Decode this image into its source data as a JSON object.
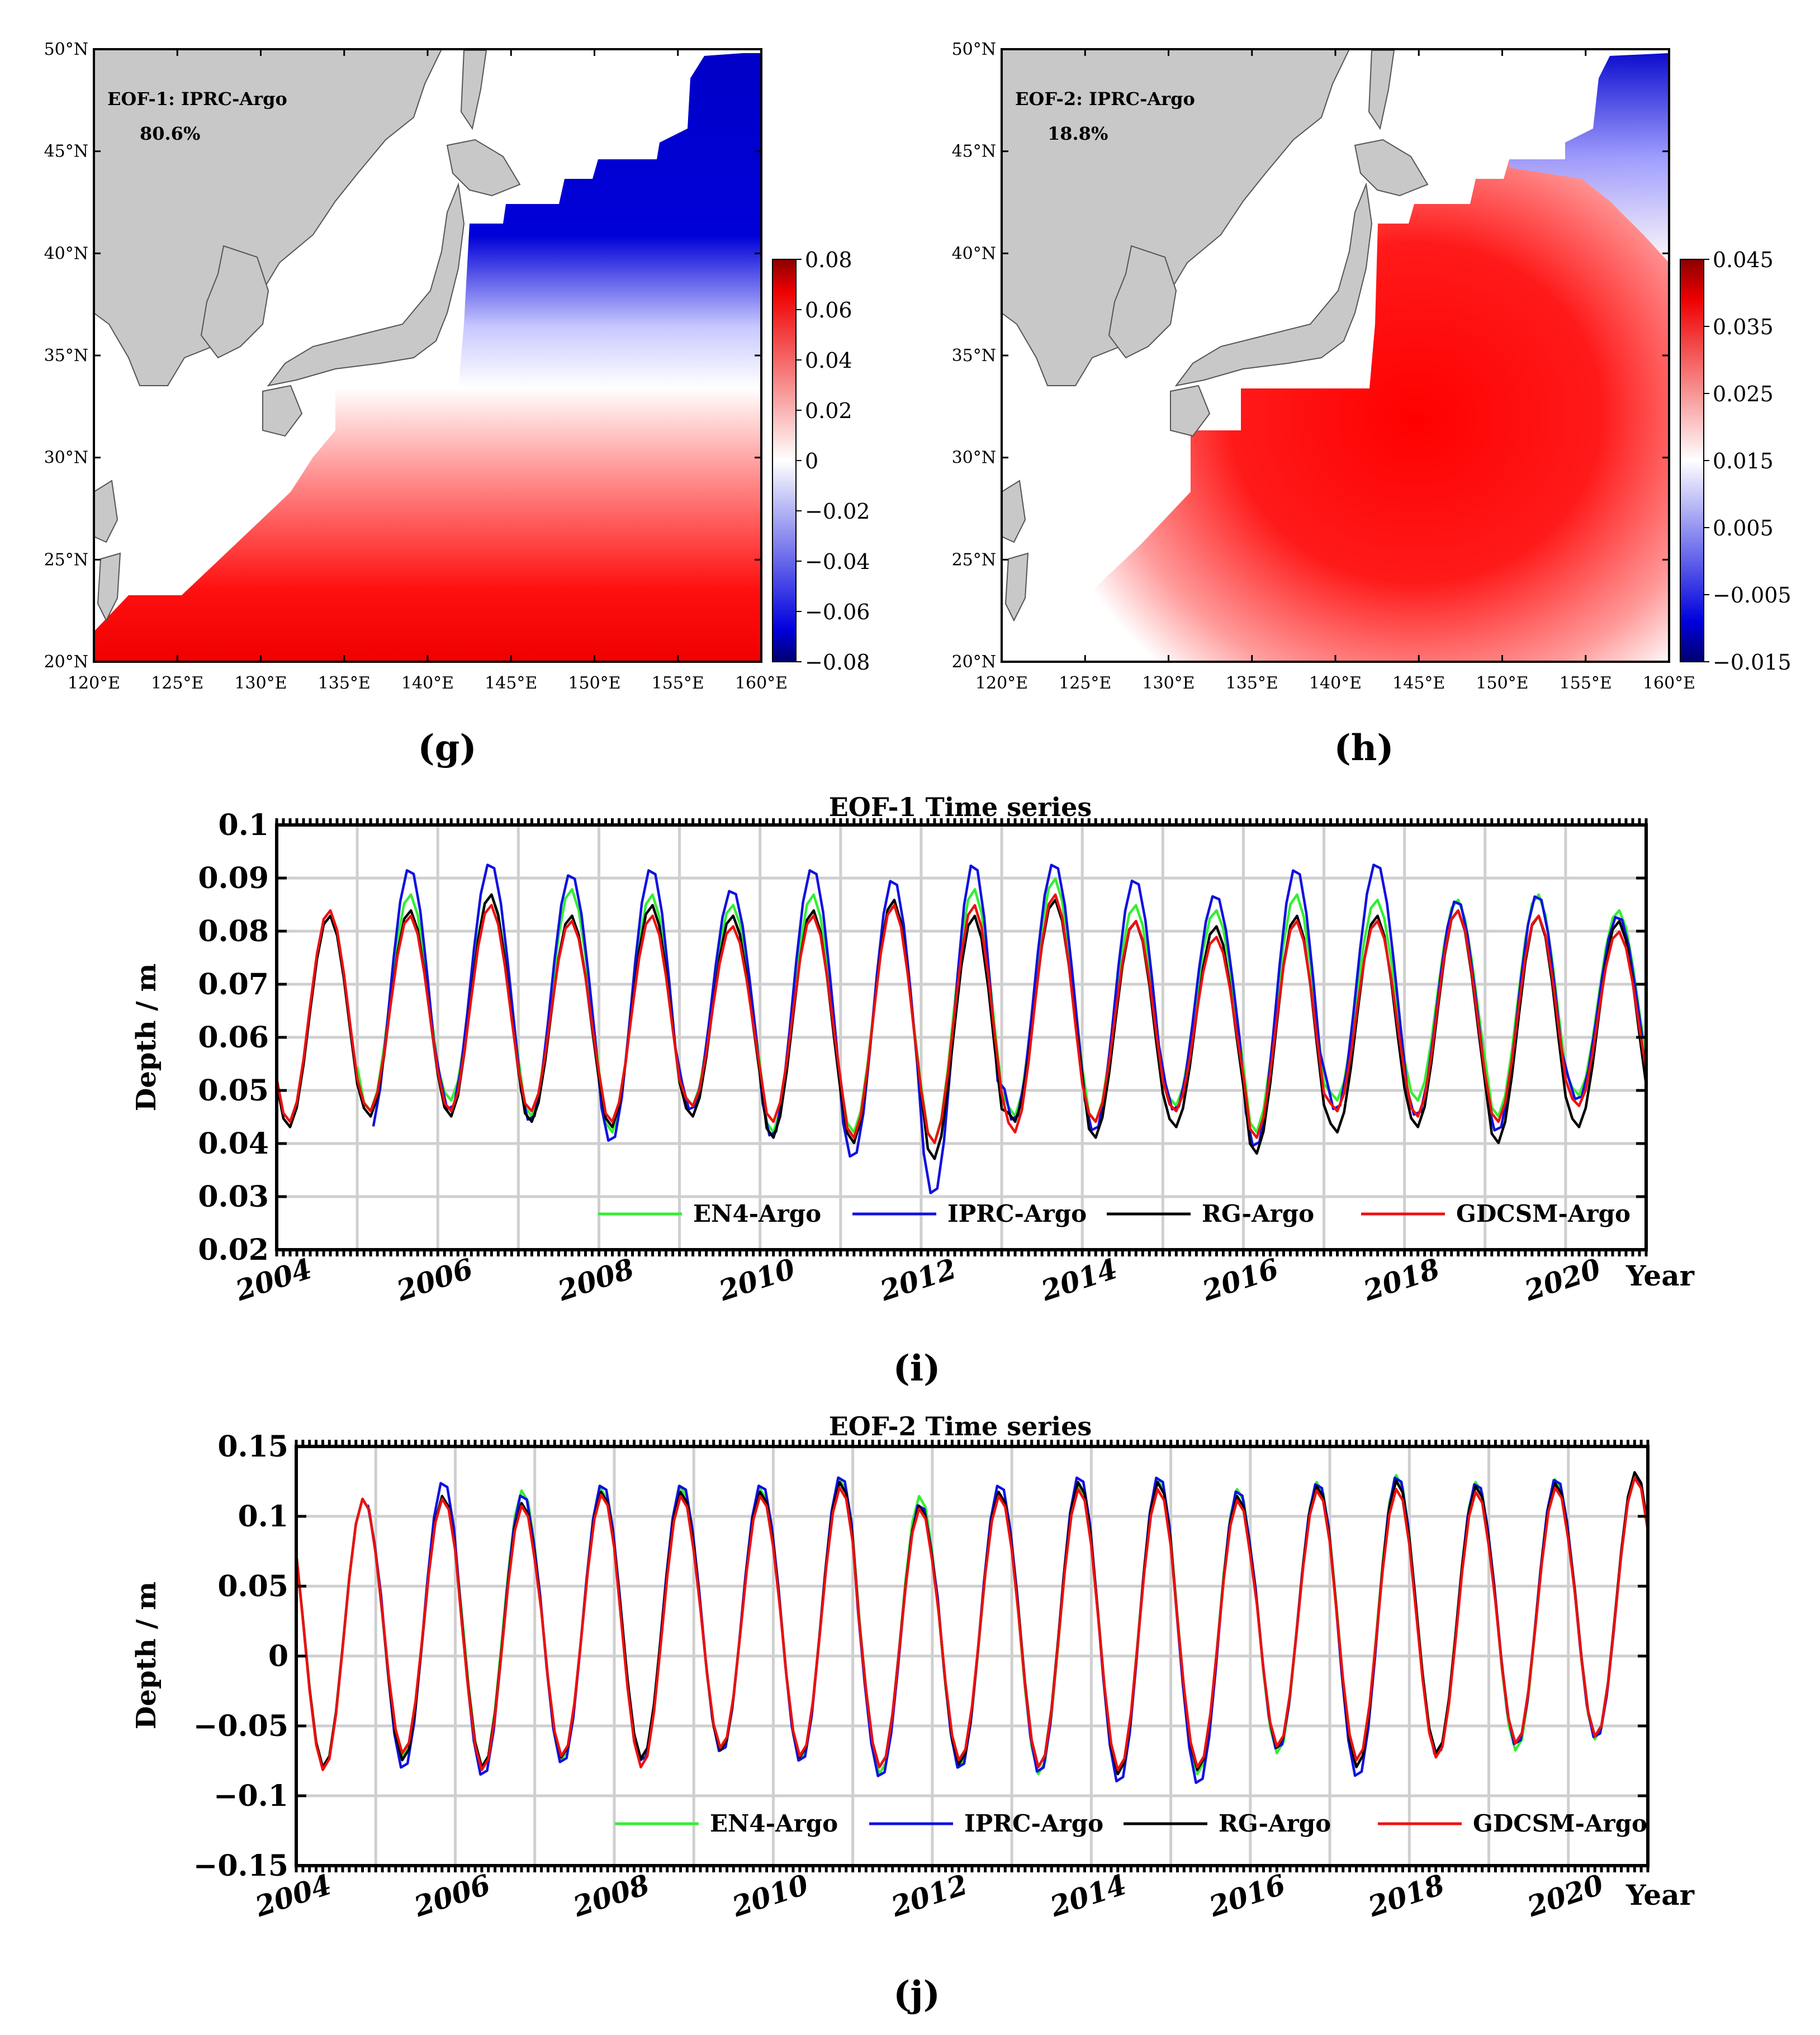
{
  "colors": {
    "red": "#f00000",
    "blue": "#0000cc",
    "white": "#ffffff",
    "land": "#c8c8c8",
    "en4": "#33ee33",
    "iprc": "#1010e0",
    "rg": "#000000",
    "gdcsm": "#ee1010",
    "grid": "#cfcfcf"
  },
  "chart_data": [
    {
      "id": "g",
      "type": "heatmap",
      "panel_label": "(g)",
      "annotation_title": "EOF-1: IPRC-Argo",
      "annotation_pct": "80.6%",
      "x_ticks": [
        "120°E",
        "125°E",
        "130°E",
        "135°E",
        "140°E",
        "145°E",
        "150°E",
        "155°E",
        "160°E"
      ],
      "y_ticks": [
        "50°N",
        "45°N",
        "40°N",
        "35°N",
        "30°N",
        "25°N",
        "20°N"
      ],
      "xlim": [
        120,
        160
      ],
      "ylim": [
        20,
        50
      ],
      "colorbar_ticks": [
        "0.08",
        "0.06",
        "0.04",
        "0.02",
        "0",
        "−0.02",
        "−0.04",
        "−0.06",
        "−0.08"
      ],
      "colorbar_range": [
        -0.08,
        0.08
      ],
      "pattern": "positive south of ~32°N, negative north of ~36°N"
    },
    {
      "id": "h",
      "type": "heatmap",
      "panel_label": "(h)",
      "annotation_title": "EOF-2: IPRC-Argo",
      "annotation_pct": "18.8%",
      "x_ticks": [
        "120°E",
        "125°E",
        "130°E",
        "135°E",
        "140°E",
        "145°E",
        "150°E",
        "155°E",
        "160°E"
      ],
      "y_ticks": [
        "50°N",
        "45°N",
        "40°N",
        "35°N",
        "30°N",
        "25°N",
        "20°N"
      ],
      "xlim": [
        120,
        160
      ],
      "ylim": [
        20,
        50
      ],
      "colorbar_ticks": [
        "0.045",
        "0.035",
        "0.025",
        "0.015",
        "0.005",
        "−0.005",
        "−0.015"
      ],
      "colorbar_range": [
        -0.015,
        0.045
      ],
      "pattern": "maximum near 30°N 140–155°E, weak toward 20°N and 45°N"
    },
    {
      "id": "i",
      "type": "line",
      "panel_label": "(i)",
      "title": "EOF-1 Time series",
      "ylabel": "Depth / m",
      "xlabel": "Year",
      "xlim": [
        2004,
        2021
      ],
      "ylim": [
        0.02,
        0.1
      ],
      "yticks": [
        "0.1",
        "0.09",
        "0.08",
        "0.07",
        "0.06",
        "0.05",
        "0.04",
        "0.03",
        "0.02"
      ],
      "xticks": [
        "2004",
        "2006",
        "2008",
        "2010",
        "2012",
        "2014",
        "2016",
        "2018",
        "2020"
      ],
      "series": [
        {
          "name": "EN4-Argo",
          "start": 2005.0,
          "min": [
            0.045,
            0.046,
            0.048,
            0.045,
            0.042,
            0.047,
            0.042,
            0.042,
            0.04,
            0.045,
            0.044,
            0.047,
            0.042,
            0.048,
            0.048,
            0.045,
            0.049
          ],
          "max": [
            0.083,
            0.087,
            0.087,
            0.088,
            0.087,
            0.085,
            0.087,
            0.085,
            0.088,
            0.09,
            0.085,
            0.084,
            0.087,
            0.086,
            0.086,
            0.087,
            0.084
          ]
        },
        {
          "name": "IPRC-Argo",
          "start": 2005.2,
          "min": [
            0.045,
            0.042,
            0.046,
            0.044,
            0.04,
            0.046,
            0.041,
            0.037,
            0.03,
            0.044,
            0.042,
            0.046,
            0.039,
            0.046,
            0.045,
            0.042,
            0.048
          ],
          "max": [
            0.083,
            0.092,
            0.093,
            0.091,
            0.092,
            0.088,
            0.092,
            0.09,
            0.093,
            0.093,
            0.09,
            0.087,
            0.092,
            0.093,
            0.086,
            0.087,
            0.083
          ]
        },
        {
          "name": "RG-Argo",
          "start": 2004.0,
          "min": [
            0.043,
            0.045,
            0.045,
            0.044,
            0.043,
            0.045,
            0.041,
            0.04,
            0.037,
            0.044,
            0.041,
            0.043,
            0.038,
            0.042,
            0.043,
            0.04,
            0.043
          ],
          "max": [
            0.083,
            0.084,
            0.087,
            0.083,
            0.085,
            0.083,
            0.084,
            0.086,
            0.083,
            0.086,
            0.082,
            0.081,
            0.083,
            0.083,
            0.084,
            0.083,
            0.082
          ]
        },
        {
          "name": "GDCSM-Argo",
          "start": 2004.0,
          "min": [
            0.044,
            0.046,
            0.046,
            0.046,
            0.044,
            0.047,
            0.044,
            0.041,
            0.04,
            0.042,
            0.044,
            0.046,
            0.041,
            0.046,
            0.045,
            0.044,
            0.047
          ],
          "max": [
            0.084,
            0.083,
            0.085,
            0.082,
            0.083,
            0.081,
            0.083,
            0.085,
            0.085,
            0.087,
            0.082,
            0.079,
            0.082,
            0.082,
            0.084,
            0.083,
            0.08
          ]
        }
      ]
    },
    {
      "id": "j",
      "type": "line",
      "panel_label": "(j)",
      "title": "EOF-2 Time series",
      "ylabel": "Depth / m",
      "xlabel": "Year",
      "xlim": [
        2004,
        2021
      ],
      "ylim": [
        -0.15,
        0.15
      ],
      "yticks": [
        "0.15",
        "0.1",
        "0.05",
        "0",
        "−0.05",
        "−0.1",
        "−0.15"
      ],
      "xticks": [
        "2004",
        "2006",
        "2008",
        "2010",
        "2012",
        "2014",
        "2016",
        "2018",
        "2020"
      ],
      "series": [
        {
          "name": "EN4-Argo",
          "start": 2004.0,
          "max": [
            0.113,
            0.115,
            0.119,
            0.12,
            0.122,
            0.12,
            0.127,
            0.115,
            0.117,
            0.123,
            0.127,
            0.12,
            0.125,
            0.13,
            0.125,
            0.127,
            0.13
          ],
          "min": [
            -0.08,
            -0.073,
            -0.08,
            -0.075,
            -0.075,
            -0.068,
            -0.075,
            -0.085,
            -0.08,
            -0.085,
            -0.085,
            -0.085,
            -0.07,
            -0.08,
            -0.07,
            -0.068,
            -0.06
          ]
        },
        {
          "name": "IPRC-Argo",
          "start": 2004.9,
          "max": [
            0.113,
            0.126,
            0.117,
            0.124,
            0.124,
            0.124,
            0.13,
            0.11,
            0.124,
            0.13,
            0.13,
            0.12,
            0.125,
            0.13,
            0.125,
            0.128,
            0.13
          ],
          "min": [
            -0.08,
            -0.082,
            -0.087,
            -0.078,
            -0.077,
            -0.07,
            -0.077,
            -0.088,
            -0.082,
            -0.085,
            -0.092,
            -0.093,
            -0.068,
            -0.088,
            -0.072,
            -0.065,
            -0.06
          ]
        },
        {
          "name": "RG-Argo",
          "start": 2004.0,
          "max": [
            0.113,
            0.115,
            0.11,
            0.118,
            0.118,
            0.118,
            0.125,
            0.108,
            0.118,
            0.125,
            0.125,
            0.115,
            0.122,
            0.126,
            0.122,
            0.124,
            0.132
          ],
          "min": [
            -0.08,
            -0.075,
            -0.08,
            -0.073,
            -0.074,
            -0.068,
            -0.073,
            -0.08,
            -0.078,
            -0.08,
            -0.085,
            -0.082,
            -0.066,
            -0.08,
            -0.07,
            -0.063,
            -0.058
          ]
        },
        {
          "name": "GDCSM-Argo",
          "start": 2004.0,
          "max": [
            0.113,
            0.113,
            0.108,
            0.116,
            0.115,
            0.115,
            0.121,
            0.106,
            0.115,
            0.12,
            0.12,
            0.112,
            0.119,
            0.12,
            0.118,
            0.121,
            0.128
          ],
          "min": [
            -0.082,
            -0.07,
            -0.082,
            -0.072,
            -0.08,
            -0.066,
            -0.072,
            -0.08,
            -0.075,
            -0.08,
            -0.082,
            -0.08,
            -0.065,
            -0.075,
            -0.073,
            -0.063,
            -0.058
          ]
        }
      ]
    }
  ]
}
